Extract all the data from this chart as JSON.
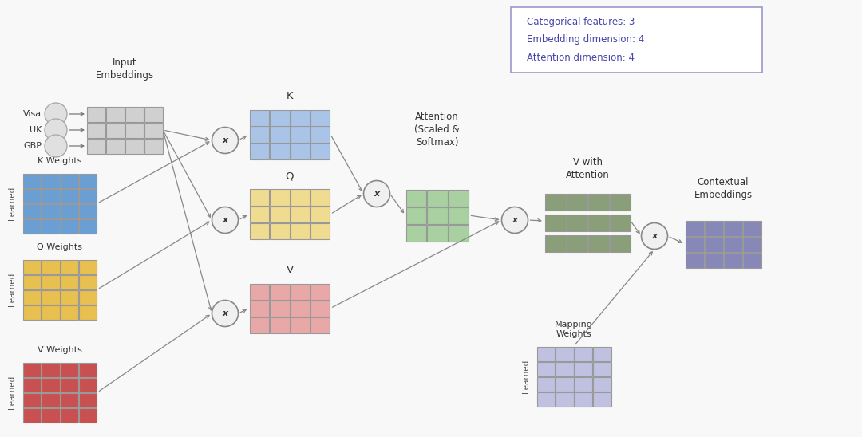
{
  "bg_color": "#f8f8f8",
  "colors": {
    "input_embed": "#d0d0d0",
    "k_weight": "#6b9fd4",
    "q_weight": "#e8c050",
    "v_weight": "#c85050",
    "k_out": "#aac4e8",
    "q_out": "#f0dc90",
    "v_out": "#e8a8a8",
    "attention": "#a8d0a0",
    "v_attention": "#8a9e7a",
    "mapping_weight": "#c0c0e0",
    "contextual": "#8888b8",
    "circle_bg": "#f0f0f0",
    "circle_edge": "#888888",
    "input_circle": "#e0e0e0"
  },
  "legend_text_color": "#4444aa",
  "legend_border_color": "#9999cc",
  "node_labels": {
    "input": "Input\nEmbeddings",
    "k_w": "K Weights",
    "q_w": "Q Weights",
    "v_w": "V Weights",
    "k": "K",
    "q": "Q",
    "v": "V",
    "attn": "Attention\n(Scaled &\nSoftmax)",
    "v_attn": "V with\nAttention",
    "map_w": "Mapping\nWeights",
    "ctx": "Contextual\nEmbeddings"
  },
  "input_labels": [
    "Visa",
    "UK",
    "GBP"
  ],
  "legend_lines": [
    "Categorical features: 3",
    "Embedding dimension: 4",
    "Attention dimension: 4"
  ]
}
